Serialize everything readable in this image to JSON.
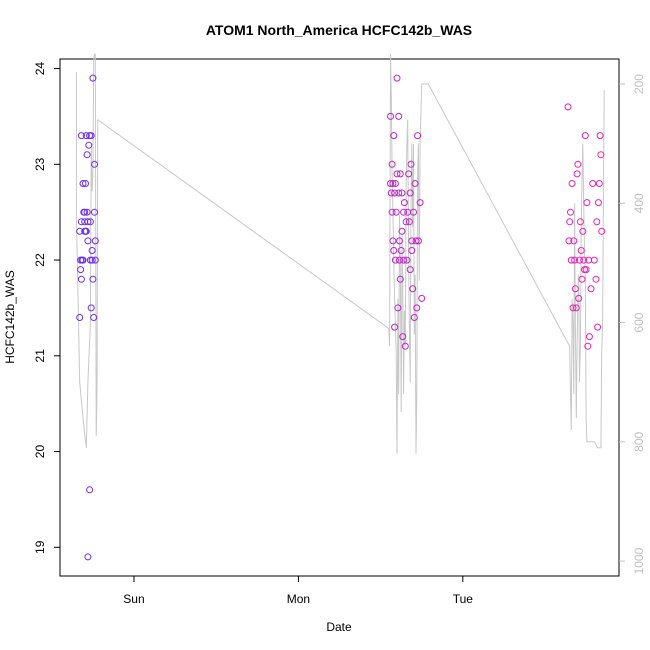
{
  "chart_data": {
    "type": "scatter",
    "title": "ATOM1 North_America HCFC142b_WAS",
    "xlabel": "Date",
    "ylabel": "HCFC142b_WAS",
    "x_ticks": [
      "Sun",
      "Mon",
      "Tue"
    ],
    "x_tick_positions": [
      1,
      2,
      3
    ],
    "xlim": [
      0.55,
      3.95
    ],
    "ylim": [
      18.7,
      24.1
    ],
    "y_ticks": [
      19,
      20,
      21,
      22,
      23,
      24
    ],
    "y2lim_inverted": [
      1025,
      158
    ],
    "y2_ticks": [
      200,
      400,
      600,
      800,
      1000
    ],
    "grid": false,
    "colors": {
      "points_start": "#6a2ff2",
      "points_end": "#f020b0",
      "line": "#c8c8c8"
    },
    "series": [
      {
        "type": "points",
        "x": [
          0.67,
          0.67,
          0.675,
          0.675,
          0.68,
          0.68,
          0.68,
          0.685,
          0.685,
          0.69,
          0.69,
          0.695,
          0.7,
          0.7,
          0.7,
          0.705,
          0.705,
          0.71,
          0.71,
          0.715,
          0.715,
          0.72,
          0.72,
          0.72,
          0.725,
          0.73,
          0.73,
          0.735,
          0.735,
          0.74,
          0.74,
          0.745,
          0.745,
          0.75,
          0.75,
          0.755,
          0.76,
          0.76,
          0.765,
          0.765,
          2.56,
          2.56,
          2.565,
          2.57,
          2.57,
          2.575,
          2.575,
          2.58,
          2.58,
          2.585,
          2.585,
          2.59,
          2.59,
          2.595,
          2.6,
          2.6,
          2.605,
          2.61,
          2.61,
          2.615,
          2.615,
          2.62,
          2.62,
          2.625,
          2.63,
          2.63,
          2.635,
          2.64,
          2.64,
          2.645,
          2.65,
          2.655,
          2.66,
          2.665,
          2.67,
          2.675,
          2.68,
          2.68,
          2.685,
          2.69,
          2.69,
          2.695,
          2.7,
          2.705,
          2.71,
          2.715,
          2.72,
          2.725,
          2.73,
          2.74,
          2.75,
          3.64,
          3.645,
          3.65,
          3.655,
          3.66,
          3.665,
          3.67,
          3.675,
          3.68,
          3.685,
          3.69,
          3.695,
          3.7,
          3.705,
          3.71,
          3.715,
          3.72,
          3.725,
          3.73,
          3.735,
          3.74,
          3.745,
          3.75,
          3.755,
          3.76,
          3.765,
          3.77,
          3.78,
          3.79,
          3.8,
          3.81,
          3.815,
          3.82,
          3.825,
          3.83,
          3.835,
          3.84,
          3.845
        ],
        "y": [
          22.3,
          21.4,
          21.9,
          22.0,
          22.4,
          23.3,
          21.8,
          22.0,
          22.0,
          22.0,
          22.8,
          22.5,
          22.3,
          22.4,
          22.5,
          22.8,
          22.3,
          22.3,
          23.3,
          23.1,
          22.5,
          22.4,
          22.2,
          18.9,
          23.2,
          23.3,
          19.6,
          22.0,
          22.4,
          23.3,
          21.5,
          22.1,
          22.0,
          21.8,
          23.9,
          21.4,
          22.5,
          23.0,
          22.0,
          22.2,
          23.5,
          22.8,
          22.7,
          23.0,
          22.5,
          22.8,
          22.2,
          23.3,
          22.1,
          22.7,
          21.3,
          22.8,
          22.0,
          22.5,
          23.9,
          22.9,
          21.5,
          22.7,
          23.5,
          22.2,
          22.0,
          22.9,
          21.8,
          22.1,
          22.3,
          22.7,
          21.2,
          22.0,
          22.5,
          22.6,
          21.1,
          22.4,
          22.0,
          22.5,
          22.9,
          22.4,
          21.9,
          22.7,
          23.0,
          22.1,
          22.2,
          21.7,
          22.5,
          21.4,
          22.8,
          22.2,
          21.5,
          23.3,
          22.2,
          22.6,
          21.6,
          23.6,
          22.2,
          22.4,
          22.5,
          22.0,
          22.8,
          21.5,
          22.2,
          22.0,
          21.7,
          21.5,
          22.9,
          23.0,
          21.6,
          22.0,
          22.4,
          22.1,
          21.8,
          22.3,
          22.0,
          21.9,
          23.3,
          21.9,
          22.6,
          21.1,
          22.0,
          21.2,
          21.7,
          22.8,
          22.0,
          21.8,
          22.4,
          21.3,
          22.6,
          22.8,
          23.3,
          23.1,
          22.3
        ]
      },
      {
        "type": "line",
        "axis": "right",
        "x": [
          0.65,
          0.65,
          0.67,
          0.69,
          0.71,
          0.72,
          0.735,
          0.74,
          0.745,
          0.75,
          0.755,
          0.76,
          0.765,
          0.77,
          0.775,
          0.78,
          2.55,
          2.555,
          2.56,
          2.565,
          2.57,
          2.575,
          2.58,
          2.585,
          2.59,
          2.595,
          2.6,
          2.605,
          2.61,
          2.615,
          2.62,
          2.625,
          2.63,
          2.635,
          2.64,
          2.645,
          2.65,
          2.655,
          2.66,
          2.665,
          2.67,
          2.675,
          2.68,
          2.685,
          2.69,
          2.695,
          2.7,
          2.705,
          2.71,
          2.715,
          2.72,
          2.725,
          2.73,
          2.735,
          2.74,
          2.75,
          2.76,
          2.77,
          2.78,
          2.79,
          3.65,
          3.655,
          3.66,
          3.665,
          3.67,
          3.675,
          3.68,
          3.685,
          3.69,
          3.695,
          3.7,
          3.705,
          3.71,
          3.715,
          3.72,
          3.725,
          3.73,
          3.735,
          3.74,
          3.745,
          3.75,
          3.755,
          3.76,
          3.78,
          3.8,
          3.82,
          3.83,
          3.84,
          3.845,
          3.85,
          3.855,
          3.86
        ],
        "y": [
          180,
          420,
          700,
          760,
          810,
          700,
          600,
          300,
          380,
          350,
          160,
          150,
          150,
          790,
          720,
          260,
          610,
          640,
          150,
          220,
          350,
          410,
          500,
          560,
          600,
          650,
          820,
          560,
          720,
          420,
          500,
          750,
          450,
          550,
          720,
          580,
          640,
          380,
          300,
          260,
          480,
          620,
          700,
          400,
          300,
          440,
          300,
          620,
          520,
          820,
          720,
          350,
          300,
          530,
          300,
          200,
          200,
          200,
          200,
          200,
          640,
          720,
          780,
          560,
          600,
          720,
          400,
          600,
          760,
          640,
          560,
          520,
          700,
          640,
          450,
          360,
          300,
          400,
          480,
          520,
          760,
          800,
          800,
          800,
          800,
          810,
          810,
          810,
          650,
          600,
          400,
          210
        ]
      }
    ]
  }
}
